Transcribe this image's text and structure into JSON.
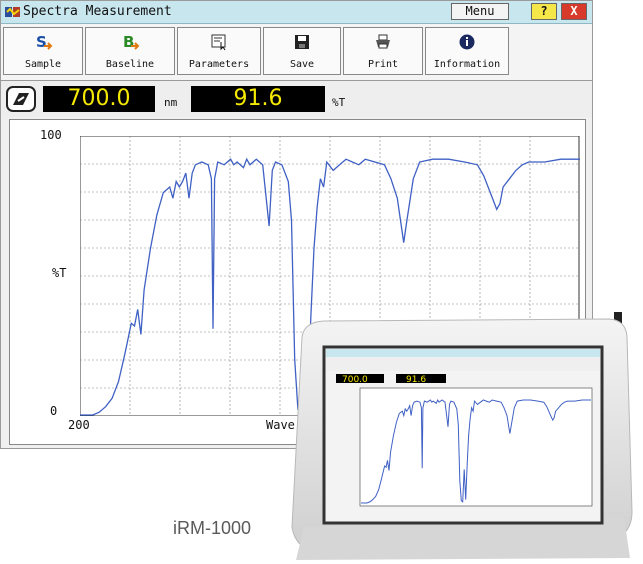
{
  "window": {
    "title": "Spectra Measurement",
    "menu_label": "Menu",
    "help_glyph": "?",
    "close_glyph": "X"
  },
  "toolbar": {
    "items": [
      {
        "label": "Sample",
        "icon": "sample-icon"
      },
      {
        "label": "Baseline",
        "icon": "baseline-icon"
      },
      {
        "label": "Parameters",
        "icon": "parameters-icon"
      },
      {
        "label": "Save",
        "icon": "save-icon"
      },
      {
        "label": "Print",
        "icon": "print-icon"
      },
      {
        "label": "Information",
        "icon": "info-icon"
      }
    ]
  },
  "readout": {
    "wavelength": "700.0",
    "wavelength_unit": "nm",
    "value": "91.6",
    "value_unit": "%T"
  },
  "chart_data": {
    "type": "line",
    "ylabel": "%T",
    "xlabel": "Wave",
    "ytick_labels": [
      "100",
      "0"
    ],
    "xtick_labels": [
      "200"
    ],
    "ylim": [
      0,
      100
    ],
    "grid": true,
    "series": [
      {
        "values": [
          [
            200,
            0
          ],
          [
            208,
            0
          ],
          [
            212,
            1
          ],
          [
            216,
            3
          ],
          [
            220,
            6
          ],
          [
            224,
            12
          ],
          [
            228,
            22
          ],
          [
            232,
            33
          ],
          [
            234,
            32
          ],
          [
            236,
            38
          ],
          [
            238,
            29
          ],
          [
            240,
            45
          ],
          [
            244,
            60
          ],
          [
            248,
            72
          ],
          [
            252,
            80
          ],
          [
            256,
            82
          ],
          [
            258,
            78
          ],
          [
            260,
            84
          ],
          [
            262,
            82
          ],
          [
            264,
            84
          ],
          [
            266,
            87
          ],
          [
            268,
            78
          ],
          [
            270,
            87
          ],
          [
            272,
            90
          ],
          [
            276,
            91
          ],
          [
            280,
            90
          ],
          [
            282,
            85
          ],
          [
            283,
            31
          ],
          [
            284,
            85
          ],
          [
            286,
            91
          ],
          [
            290,
            90
          ],
          [
            294,
            92
          ],
          [
            296,
            90
          ],
          [
            298,
            91
          ],
          [
            302,
            89
          ],
          [
            304,
            92
          ],
          [
            306,
            90
          ],
          [
            310,
            92
          ],
          [
            314,
            90
          ],
          [
            318,
            68
          ],
          [
            320,
            88
          ],
          [
            322,
            91
          ],
          [
            326,
            90
          ],
          [
            330,
            84
          ],
          [
            332,
            70
          ],
          [
            334,
            20
          ],
          [
            336,
            2
          ],
          [
            338,
            1
          ],
          [
            340,
            30
          ],
          [
            342,
            3
          ],
          [
            344,
            35
          ],
          [
            346,
            60
          ],
          [
            348,
            75
          ],
          [
            350,
            85
          ],
          [
            352,
            82
          ],
          [
            354,
            91
          ],
          [
            358,
            88
          ],
          [
            362,
            90
          ],
          [
            366,
            92
          ],
          [
            370,
            91
          ],
          [
            374,
            90
          ],
          [
            378,
            92
          ],
          [
            384,
            91
          ],
          [
            390,
            90
          ],
          [
            394,
            85
          ],
          [
            398,
            78
          ],
          [
            400,
            70
          ],
          [
            402,
            62
          ],
          [
            404,
            70
          ],
          [
            408,
            85
          ],
          [
            412,
            91
          ],
          [
            420,
            92
          ],
          [
            430,
            92
          ],
          [
            440,
            91
          ],
          [
            448,
            90
          ],
          [
            452,
            86
          ],
          [
            456,
            80
          ],
          [
            460,
            74
          ],
          [
            462,
            76
          ],
          [
            464,
            82
          ],
          [
            468,
            85
          ],
          [
            472,
            88
          ],
          [
            476,
            90
          ],
          [
            480,
            91
          ],
          [
            490,
            91
          ],
          [
            500,
            92
          ],
          [
            512,
            92
          ]
        ]
      }
    ]
  },
  "product": {
    "caption": "iRM-1000"
  },
  "device_screen": {
    "wavelength": "700.0",
    "value": "91.6"
  },
  "colors": {
    "titlebar": "#c8e6ee",
    "lcd_bg": "#000000",
    "lcd_text": "#f6e900",
    "trace": "#3f60c4"
  }
}
